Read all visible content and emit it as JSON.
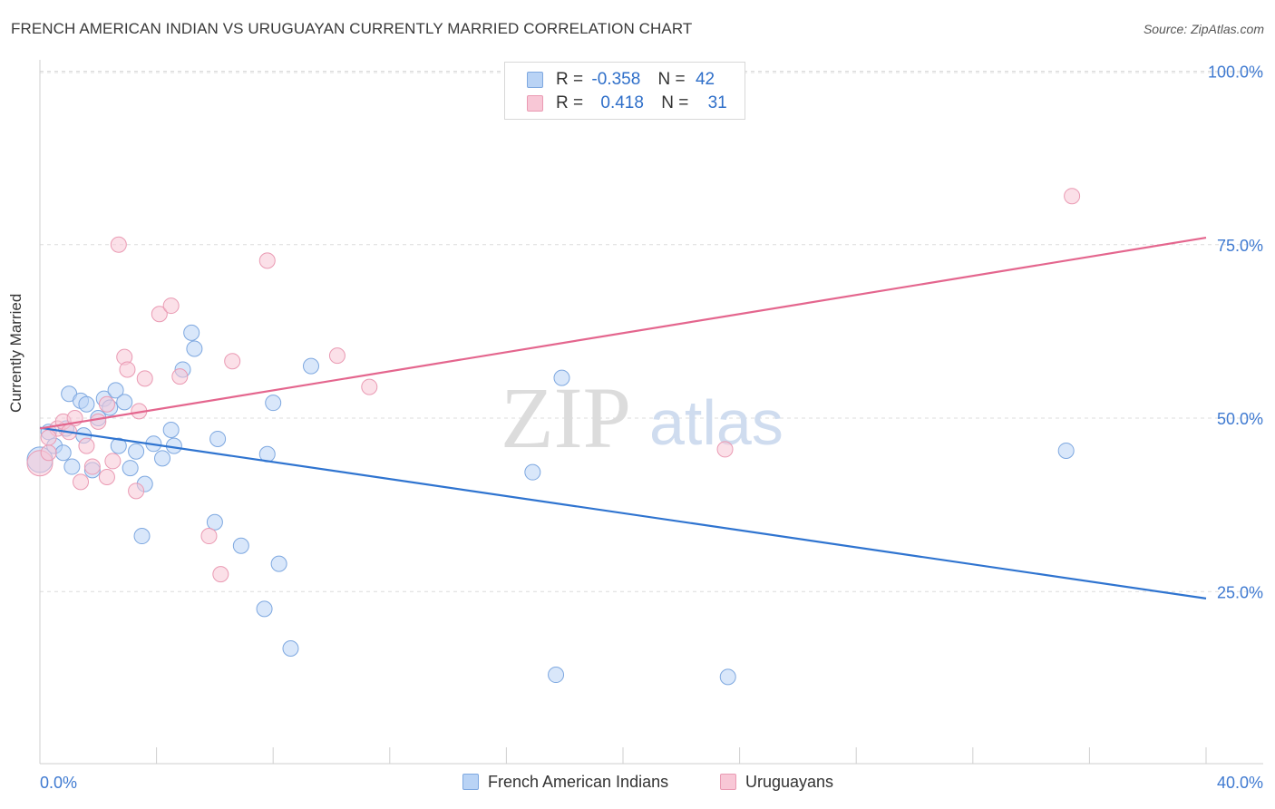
{
  "header": {
    "title": "FRENCH AMERICAN INDIAN VS URUGUAYAN CURRENTLY MARRIED CORRELATION CHART",
    "source": "Source: ZipAtlas.com"
  },
  "legend_top": {
    "rows": [
      {
        "r_label": "R =",
        "r_value": "-0.358",
        "n_label": "N =",
        "n_value": "42"
      },
      {
        "r_label": "R =",
        "r_value": "0.418",
        "n_label": "N =",
        "n_value": "31"
      }
    ]
  },
  "watermark": {
    "zip": "ZIP",
    "atlas": "atlas"
  },
  "colors": {
    "blue_fill": "#b9d3f5",
    "blue_stroke": "#7ea8e0",
    "blue_line": "#2f74d0",
    "pink_fill": "#f8c7d6",
    "pink_stroke": "#ea9ab3",
    "pink_line": "#e4668e",
    "tick_text": "#3f7ad1",
    "grid": "#dcdcdc"
  },
  "chart_data": {
    "type": "scatter",
    "title": "FRENCH AMERICAN INDIAN VS URUGUAYAN CURRENTLY MARRIED CORRELATION CHART",
    "xlabel": "",
    "ylabel": "Currently Married",
    "xlim": [
      0,
      40
    ],
    "ylim": [
      0,
      105
    ],
    "x_tick_labels": [
      "0.0%",
      "40.0%"
    ],
    "y_ticks": [
      25,
      50,
      75,
      100
    ],
    "y_tick_labels": [
      "25.0%",
      "50.0%",
      "75.0%",
      "100.0%"
    ],
    "grid": "horizontal dashed",
    "legend_position": "bottom",
    "series": [
      {
        "name": "French American Indians",
        "color": "#7ea8e0",
        "trend": {
          "r": -0.358,
          "n": 42,
          "x": [
            0,
            40
          ],
          "y": [
            48.6,
            24.0
          ]
        },
        "points": [
          [
            0.0,
            44.0
          ],
          [
            0.3,
            48.0
          ],
          [
            0.5,
            46.0
          ],
          [
            0.8,
            45.0
          ],
          [
            0.9,
            48.5
          ],
          [
            1.1,
            43.0
          ],
          [
            1.0,
            53.5
          ],
          [
            1.4,
            52.5
          ],
          [
            1.5,
            47.5
          ],
          [
            1.6,
            52.0
          ],
          [
            1.8,
            42.5
          ],
          [
            2.0,
            50.0
          ],
          [
            2.2,
            52.8
          ],
          [
            2.4,
            51.5
          ],
          [
            2.6,
            54.0
          ],
          [
            2.7,
            46.0
          ],
          [
            2.9,
            52.3
          ],
          [
            3.1,
            42.8
          ],
          [
            3.3,
            45.2
          ],
          [
            3.5,
            33.0
          ],
          [
            3.6,
            40.5
          ],
          [
            3.9,
            46.3
          ],
          [
            4.2,
            44.2
          ],
          [
            4.5,
            48.3
          ],
          [
            4.6,
            46.0
          ],
          [
            4.9,
            57.0
          ],
          [
            5.2,
            62.3
          ],
          [
            5.3,
            60.0
          ],
          [
            6.0,
            35.0
          ],
          [
            6.1,
            47.0
          ],
          [
            6.9,
            31.6
          ],
          [
            7.7,
            22.5
          ],
          [
            7.8,
            44.8
          ],
          [
            8.0,
            52.2
          ],
          [
            8.2,
            29.0
          ],
          [
            8.6,
            16.8
          ],
          [
            9.3,
            57.5
          ],
          [
            16.9,
            42.2
          ],
          [
            17.7,
            13.0
          ],
          [
            17.9,
            55.8
          ],
          [
            23.6,
            12.7
          ],
          [
            35.2,
            45.3
          ]
        ]
      },
      {
        "name": "Uruguayans",
        "color": "#ea9ab3",
        "trend": {
          "r": 0.418,
          "n": 31,
          "x": [
            0,
            40
          ],
          "y": [
            48.5,
            76.0
          ]
        },
        "points": [
          [
            0.0,
            43.5
          ],
          [
            0.3,
            45.0
          ],
          [
            0.6,
            48.5
          ],
          [
            0.8,
            49.5
          ],
          [
            1.0,
            48.0
          ],
          [
            1.2,
            50.0
          ],
          [
            1.4,
            40.8
          ],
          [
            1.6,
            46.0
          ],
          [
            1.8,
            43.0
          ],
          [
            2.0,
            49.5
          ],
          [
            2.3,
            52.0
          ],
          [
            2.3,
            41.5
          ],
          [
            2.5,
            43.8
          ],
          [
            2.7,
            75.0
          ],
          [
            2.9,
            58.8
          ],
          [
            3.0,
            57.0
          ],
          [
            3.3,
            39.5
          ],
          [
            3.4,
            51.0
          ],
          [
            3.6,
            55.7
          ],
          [
            4.1,
            65.0
          ],
          [
            4.5,
            66.2
          ],
          [
            4.8,
            56.0
          ],
          [
            5.8,
            33.0
          ],
          [
            6.2,
            27.5
          ],
          [
            6.6,
            58.2
          ],
          [
            7.8,
            72.7
          ],
          [
            10.2,
            59.0
          ],
          [
            11.3,
            54.5
          ],
          [
            23.5,
            45.5
          ],
          [
            35.4,
            82.0
          ],
          [
            0.3,
            47.2
          ]
        ]
      }
    ]
  },
  "bottom_legend": {
    "items": [
      {
        "label": "French American Indians"
      },
      {
        "label": "Uruguayans"
      }
    ]
  }
}
